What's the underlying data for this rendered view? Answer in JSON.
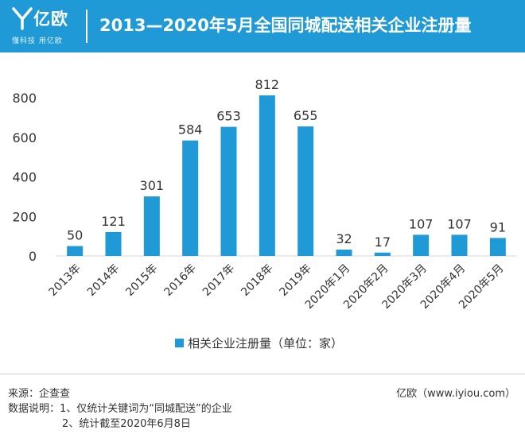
{
  "header": {
    "logo_name": "亿欧",
    "logo_slogan": "懂科技 用亿欧",
    "title": "2013—2020年5月全国同城配送相关企业注册量",
    "background_color": "#1f9ad6"
  },
  "chart_data": {
    "type": "bar",
    "title": "2013—2020年5月全国同城配送相关企业注册量",
    "categories": [
      "2013年",
      "2014年",
      "2015年",
      "2016年",
      "2017年",
      "2018年",
      "2019年",
      "2020年1月",
      "2020年2月",
      "2020年3月",
      "2020年4月",
      "2020年5月"
    ],
    "series": [
      {
        "name": "相关企业注册量（单位：家）",
        "values": [
          50,
          121,
          301,
          584,
          653,
          812,
          655,
          32,
          17,
          107,
          107,
          91
        ],
        "color": "#1f9ad6"
      }
    ],
    "ylim": [
      0,
      800
    ],
    "yticks": [
      0,
      200,
      400,
      600,
      800
    ],
    "xlabel": "",
    "ylabel": "",
    "grid": false,
    "legend": "bottom",
    "data_labels": true
  },
  "footer": {
    "source": "来源：企查查",
    "site": "亿欧（www.iyiou.com）",
    "note_1": "数据说明：1、仅统计关键词为“同城配送”的企业",
    "note_2": "2、统计截至2020年6月8日"
  }
}
